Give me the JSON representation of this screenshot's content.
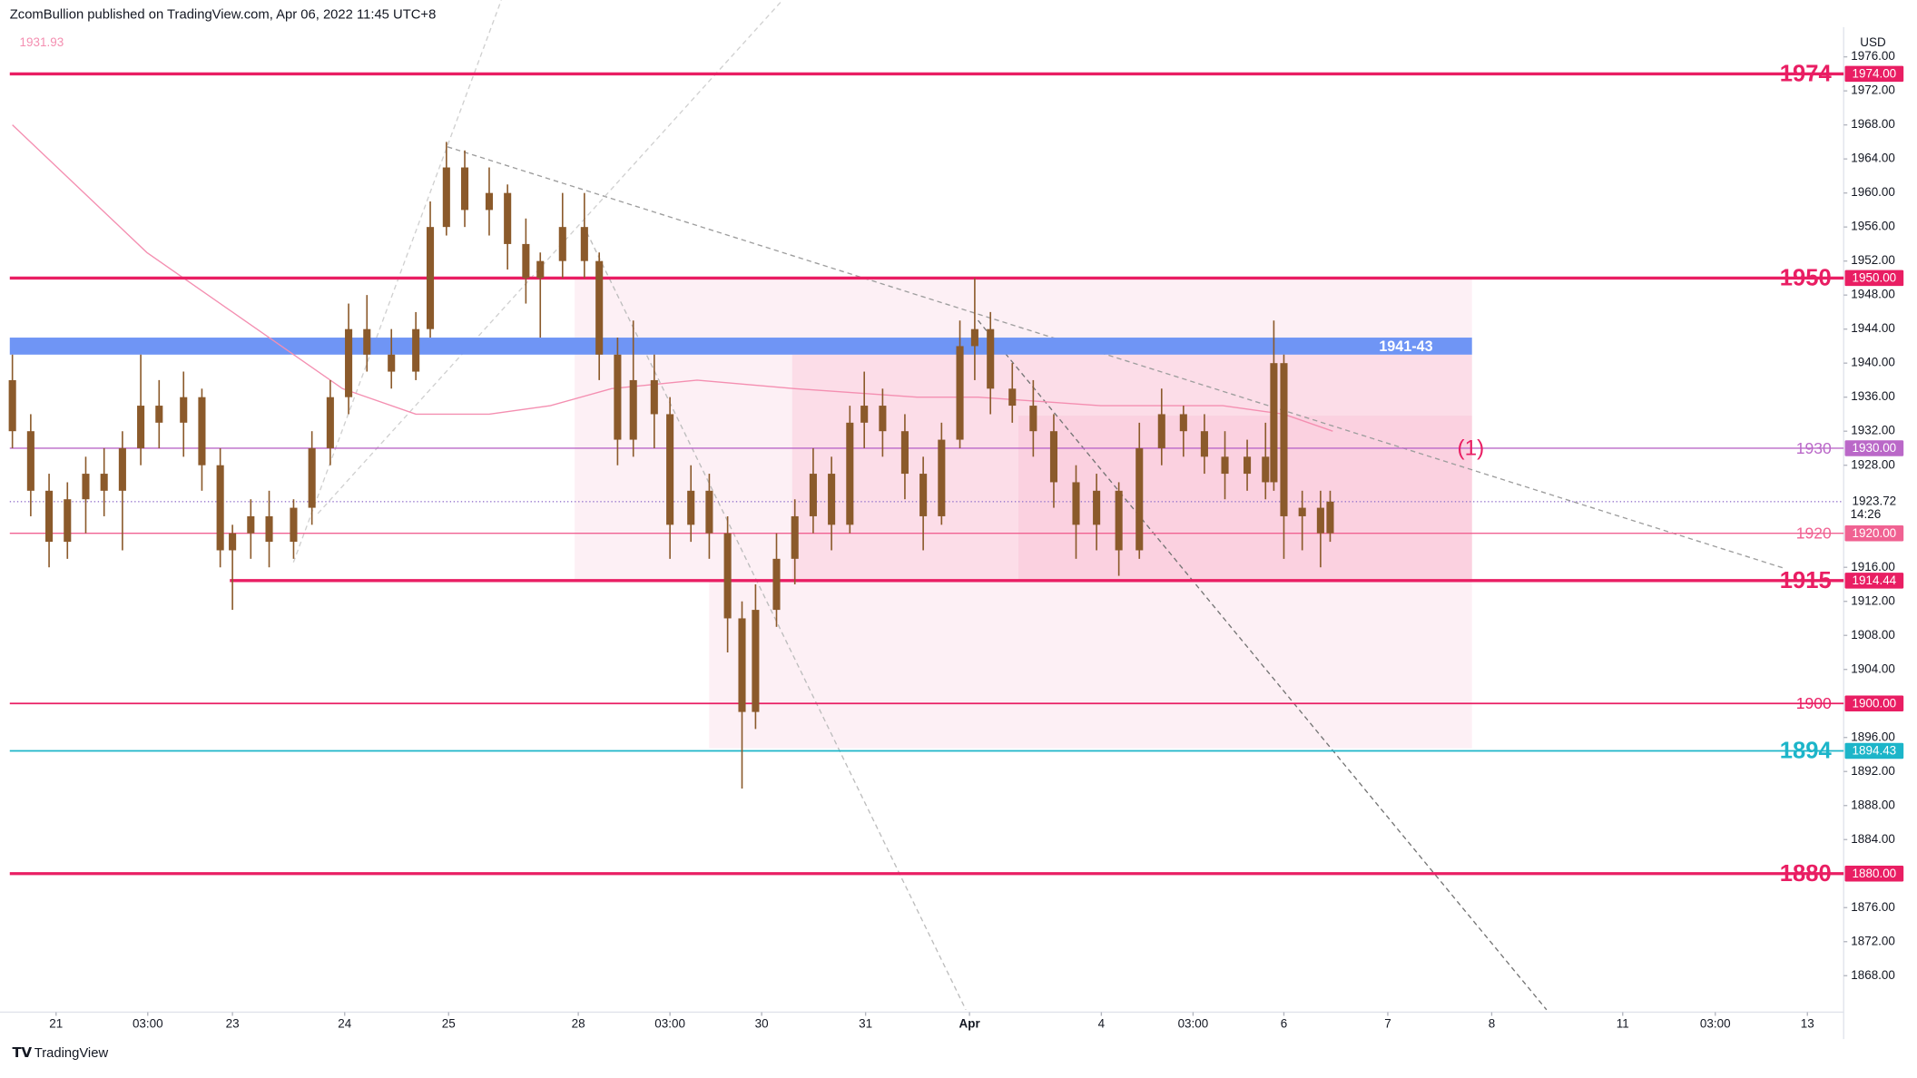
{
  "chart_data": {
    "type": "candlestick",
    "header": "ZcomBullion published on TradingView.com, Apr 06, 2022 11:45 UTC+8",
    "ma_label": "1931.93",
    "currency": "USD",
    "countdown": "14:26",
    "logo": "TradingView",
    "annotation": "(1)",
    "current": {
      "value": 1923.72,
      "label": "1923.72"
    },
    "ylim": [
      1864,
      1979.5
    ],
    "yticks": [
      {
        "value": 1868,
        "label": "1868.00"
      },
      {
        "value": 1872,
        "label": "1872.00"
      },
      {
        "value": 1876,
        "label": "1876.00"
      },
      {
        "value": 1884,
        "label": "1884.00"
      },
      {
        "value": 1888,
        "label": "1888.00"
      },
      {
        "value": 1892,
        "label": "1892.00"
      },
      {
        "value": 1896,
        "label": "1896.00"
      },
      {
        "value": 1904,
        "label": "1904.00"
      },
      {
        "value": 1908,
        "label": "1908.00"
      },
      {
        "value": 1912,
        "label": "1912.00"
      },
      {
        "value": 1916,
        "label": "1916.00"
      },
      {
        "value": 1928,
        "label": "1928.00"
      },
      {
        "value": 1932,
        "label": "1932.00"
      },
      {
        "value": 1936,
        "label": "1936.00"
      },
      {
        "value": 1940,
        "label": "1940.00"
      },
      {
        "value": 1944,
        "label": "1944.00"
      },
      {
        "value": 1948,
        "label": "1948.00"
      },
      {
        "value": 1952,
        "label": "1952.00"
      },
      {
        "value": 1956,
        "label": "1956.00"
      },
      {
        "value": 1960,
        "label": "1960.00"
      },
      {
        "value": 1964,
        "label": "1964.00"
      },
      {
        "value": 1968,
        "label": "1968.00"
      },
      {
        "value": 1972,
        "label": "1972.00"
      },
      {
        "value": 1976,
        "label": "1976.00"
      }
    ],
    "xlim": [
      0,
      420
    ],
    "xticks": [
      {
        "value": 10.6,
        "label": "21"
      },
      {
        "value": 31.6,
        "label": "03:00"
      },
      {
        "value": 51,
        "label": "23"
      },
      {
        "value": 76.7,
        "label": "24"
      },
      {
        "value": 100.5,
        "label": "25"
      },
      {
        "value": 130.2,
        "label": "28"
      },
      {
        "value": 151.2,
        "label": "03:00"
      },
      {
        "value": 172.2,
        "label": "30"
      },
      {
        "value": 196,
        "label": "31"
      },
      {
        "value": 219.8,
        "label": "Apr"
      },
      {
        "value": 250,
        "label": "4"
      },
      {
        "value": 271,
        "label": "03:00"
      },
      {
        "value": 291.8,
        "label": "6"
      },
      {
        "value": 315.6,
        "label": "7"
      },
      {
        "value": 339.4,
        "label": "8"
      },
      {
        "value": 369.4,
        "label": "11"
      },
      {
        "value": 390.6,
        "label": "03:00"
      },
      {
        "value": 411.7,
        "label": "13"
      }
    ],
    "candle_color": "#8b5a2b",
    "candles": {
      "x": [
        0.6,
        4.8,
        9,
        13.2,
        17.4,
        21.6,
        25.8,
        30,
        34.2,
        39.8,
        44,
        48.2,
        51,
        55.2,
        59.4,
        65,
        69.2,
        73.4,
        77.6,
        81.8,
        87.4,
        93,
        96.3,
        100,
        104.2,
        109.8,
        114,
        118.2,
        121.5,
        126.6,
        131.6,
        135,
        139.2,
        142.8,
        147.6,
        151.2,
        156,
        160.2,
        164.4,
        167.7,
        170.8,
        175.6,
        179.8,
        184,
        188.2,
        192.4,
        195.7,
        199.9,
        205,
        209.2,
        213.4,
        217.6,
        221,
        224.6,
        229.6,
        234.4,
        239.1,
        244.2,
        248.9,
        254,
        258.7,
        263.8,
        268.8,
        273.6,
        278.3,
        283.4,
        287.6,
        289.5,
        291.8,
        296,
        300.2,
        302.4
      ],
      "open": [
        1938,
        1932,
        1925,
        1919,
        1924,
        1927,
        1925,
        1930,
        1935,
        1933,
        1936,
        1928,
        1918,
        1920,
        1922,
        1919,
        1923,
        1930,
        1936,
        1944,
        1941,
        1939,
        1944,
        1956,
        1963,
        1958,
        1960,
        1954,
        1950,
        1952,
        1956,
        1952,
        1941,
        1931,
        1938,
        1934,
        1921,
        1925,
        1920,
        1910,
        1899,
        1911,
        1917,
        1922,
        1927,
        1921,
        1933,
        1935,
        1932,
        1927,
        1922,
        1931,
        1942,
        1944,
        1937,
        1935,
        1932,
        1926,
        1921,
        1925,
        1918,
        1930,
        1934,
        1932,
        1929,
        1927,
        1929,
        1926,
        1940,
        1922,
        1923,
        1920
      ],
      "high": [
        1941,
        1934,
        1927,
        1926,
        1929,
        1930,
        1932,
        1941,
        1938,
        1939,
        1937,
        1930,
        1921,
        1924,
        1925,
        1924,
        1932,
        1938,
        1947,
        1948,
        1944,
        1946,
        1959,
        1966,
        1965,
        1963,
        1961,
        1957,
        1953,
        1960,
        1960,
        1953,
        1943,
        1945,
        1941,
        1936,
        1928,
        1927,
        1922,
        1912,
        1914,
        1920,
        1924,
        1930,
        1929,
        1935,
        1939,
        1937,
        1934,
        1929,
        1933,
        1945,
        1950,
        1946,
        1940,
        1938,
        1934,
        1928,
        1927,
        1926,
        1933,
        1937,
        1935,
        1934,
        1932,
        1931,
        1933,
        1945,
        1941,
        1925,
        1925,
        1925
      ],
      "low": [
        1930,
        1922,
        1916,
        1917,
        1920,
        1922,
        1918,
        1928,
        1930,
        1929,
        1925,
        1916,
        1911,
        1917,
        1916,
        1917,
        1921,
        1928,
        1934,
        1939,
        1937,
        1938,
        1943,
        1955,
        1956,
        1955,
        1951,
        1947,
        1943,
        1950,
        1950,
        1938,
        1928,
        1929,
        1930,
        1917,
        1919,
        1917,
        1906,
        1890,
        1897,
        1909,
        1914,
        1920,
        1918,
        1920,
        1930,
        1929,
        1924,
        1918,
        1921,
        1930,
        1938,
        1934,
        1933,
        1929,
        1923,
        1917,
        1918,
        1915,
        1917,
        1928,
        1929,
        1927,
        1924,
        1925,
        1924,
        1925,
        1917,
        1918,
        1916,
        1919
      ],
      "close": [
        1932,
        1925,
        1919,
        1924,
        1927,
        1925,
        1930,
        1935,
        1933,
        1936,
        1928,
        1918,
        1920,
        1922,
        1919,
        1923,
        1930,
        1936,
        1944,
        1941,
        1939,
        1944,
        1956,
        1963,
        1958,
        1960,
        1954,
        1950,
        1952,
        1956,
        1952,
        1941,
        1931,
        1938,
        1934,
        1921,
        1925,
        1920,
        1910,
        1899,
        1911,
        1917,
        1922,
        1927,
        1921,
        1933,
        1935,
        1932,
        1927,
        1922,
        1931,
        1942,
        1944,
        1937,
        1935,
        1932,
        1926,
        1921,
        1925,
        1918,
        1930,
        1934,
        1932,
        1929,
        1927,
        1929,
        1926,
        1940,
        1922,
        1923,
        1920,
        1923.72
      ]
    },
    "ma": {
      "color": "#f48fb1",
      "x": [
        0.6,
        31.4,
        53.8,
        76.2,
        93,
        109.8,
        123.8,
        137.8,
        157.4,
        179.8,
        207.8,
        221.8,
        249.8,
        277.8,
        291.8,
        303
      ],
      "values": [
        1968,
        1953,
        1945,
        1937,
        1934,
        1934,
        1935,
        1937,
        1938,
        1937,
        1936,
        1936,
        1935,
        1935,
        1934,
        1932
      ]
    },
    "band": {
      "low": 1941,
      "high": 1943,
      "label": "1941-43",
      "color": "#6f95f5"
    },
    "levels": [
      {
        "value": 1974,
        "name": "1974",
        "price_label": "1974.00",
        "color": "#e91e63",
        "width": 2.5,
        "big": true
      },
      {
        "value": 1950,
        "name": "1950",
        "price_label": "1950.00",
        "color": "#e91e63",
        "width": 2.5,
        "big": true
      },
      {
        "value": 1930,
        "name": "1930",
        "price_label": "1930.00",
        "color": "#ba68c8",
        "width": 1,
        "big": false
      },
      {
        "value": 1920,
        "name": "1920",
        "price_label": "1920.00",
        "color": "#f06292",
        "width": 1,
        "big": false
      },
      {
        "value": 1914.44,
        "name": "1915",
        "price_label": "1914.44",
        "color": "#e91e63",
        "width": 2.5,
        "big": true,
        "from": 50.4
      },
      {
        "value": 1900,
        "name": "1900",
        "price_label": "1900.00",
        "color": "#e91e63",
        "width": 1.3,
        "big": false
      },
      {
        "value": 1894.43,
        "name": "1894",
        "price_label": "1894.43",
        "color": "#1cb5c9",
        "width": 1.3,
        "big": true
      },
      {
        "value": 1880,
        "name": "1880",
        "price_label": "1880.00",
        "color": "#e91e63",
        "width": 2.5,
        "big": true
      }
    ]
  }
}
